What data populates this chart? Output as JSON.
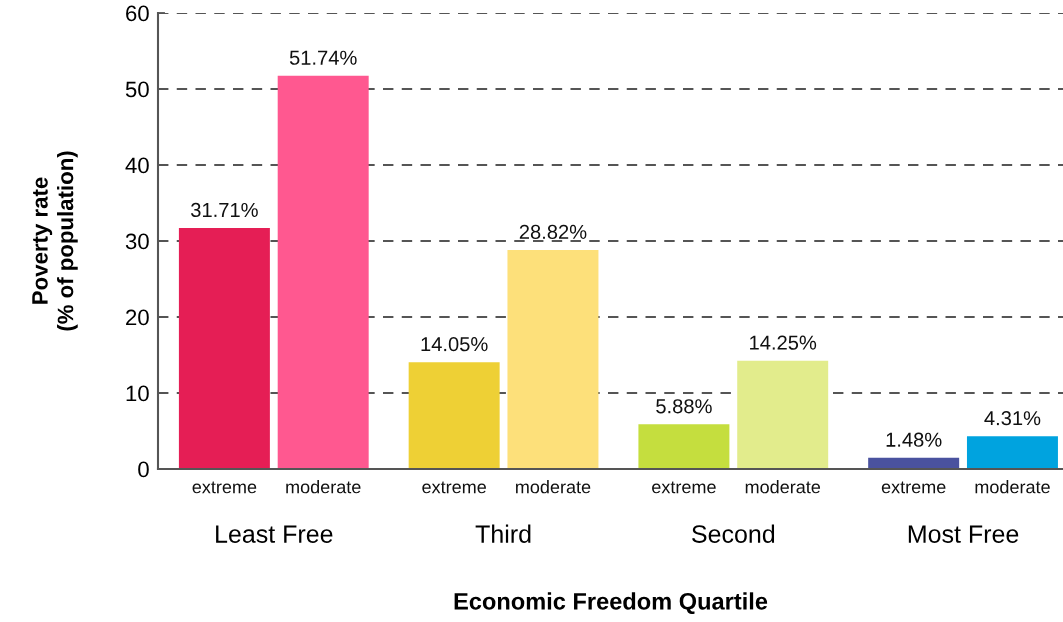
{
  "chart_data": {
    "type": "bar",
    "xlabel": "Economic Freedom Quartile",
    "ylabel": "Poverty rate\n(% of population)",
    "categories": [
      "Least Free",
      "Third",
      "Second",
      "Most Free"
    ],
    "series": [
      {
        "name": "extreme",
        "colors": [
          "#e51e55",
          "#eed035",
          "#c5de3e",
          "#4a529f"
        ],
        "values": [
          31.71,
          14.05,
          5.88,
          1.48
        ],
        "value_labels": [
          "31.71%",
          "14.05%",
          "5.88%",
          "1.48%"
        ]
      },
      {
        "name": "moderate",
        "colors": [
          "#ff5890",
          "#fde07a",
          "#e2ec8c",
          "#00a3df"
        ],
        "values": [
          51.74,
          28.82,
          14.25,
          4.31
        ],
        "value_labels": [
          "51.74%",
          "28.82%",
          "14.25%",
          "4.31%"
        ]
      }
    ],
    "ylim": [
      0,
      60
    ],
    "yticks": [
      0,
      10,
      20,
      30,
      40,
      50,
      60
    ],
    "grid": "y",
    "legend": false
  }
}
